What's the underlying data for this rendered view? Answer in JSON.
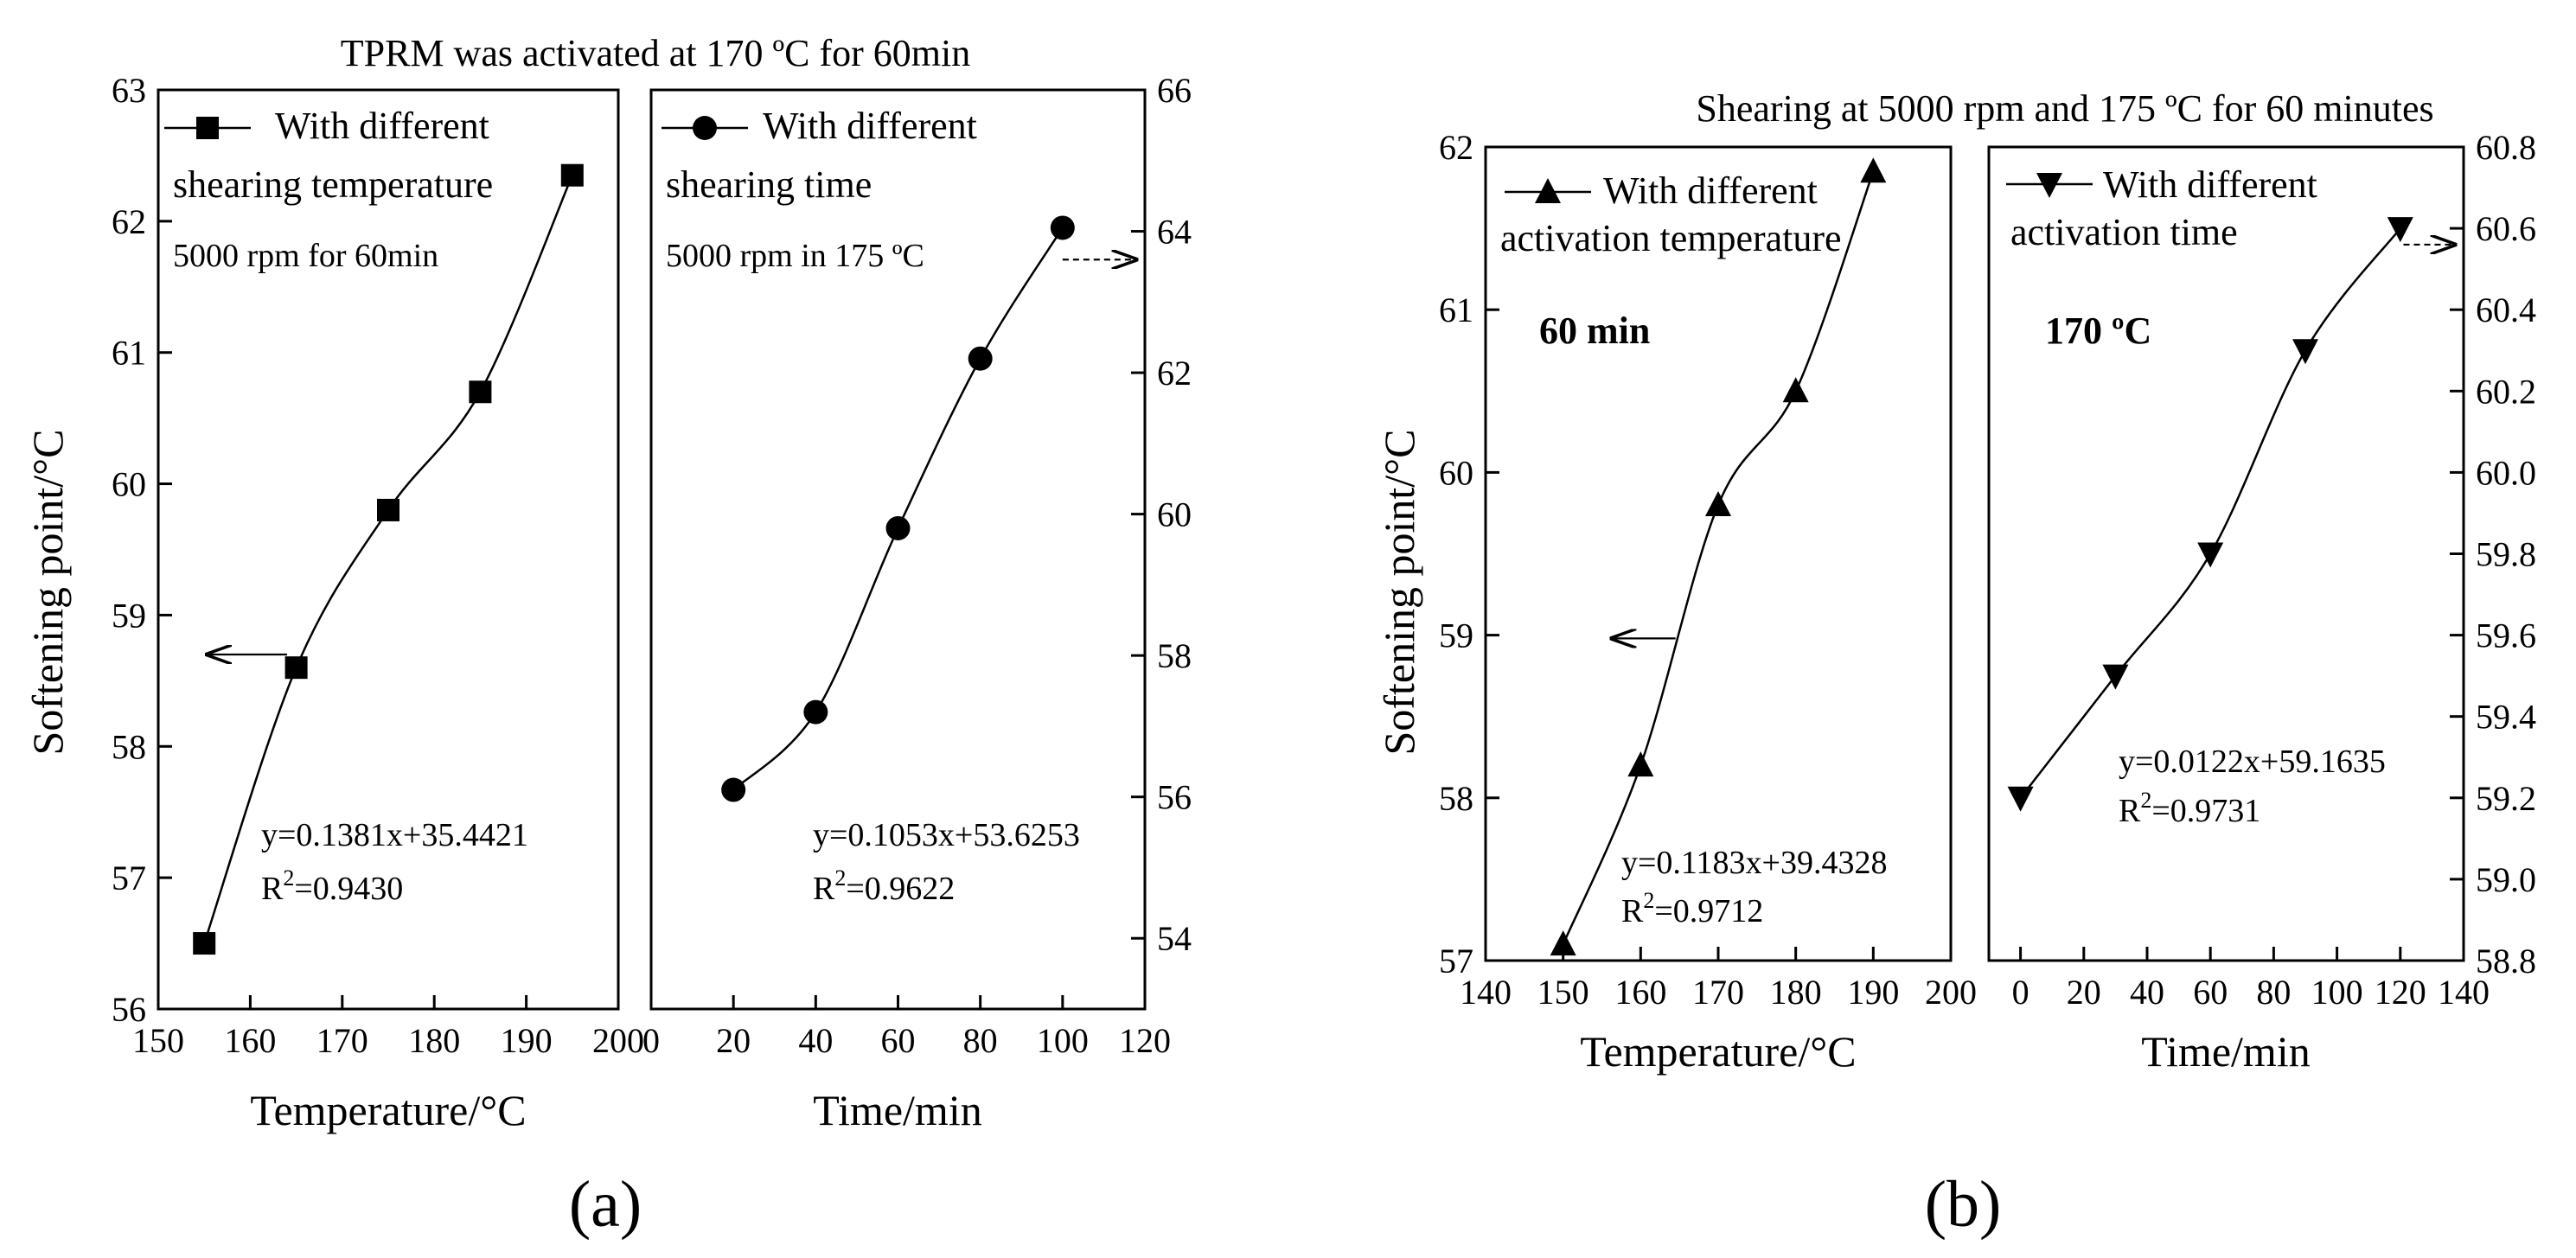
{
  "chart_data": [
    {
      "type": "line",
      "panel": "a",
      "title": "TPRM was activated at 170 ºC for 60min",
      "ylabel": "Softening point/°C",
      "subplots": [
        {
          "id": "a1",
          "xlabel": "Temperature/°C",
          "xlim": [
            150,
            200
          ],
          "xticks": [
            150,
            160,
            170,
            180,
            190,
            200
          ],
          "ylim": [
            56,
            63
          ],
          "yticks": [
            56,
            57,
            58,
            59,
            60,
            61,
            62,
            63
          ],
          "yaxis_side": "left",
          "legend": "With different shearing temperature",
          "legend_lines": [
            "With different",
            "shearing temperature"
          ],
          "marker": "square",
          "condition": "5000 rpm for 60min",
          "condition_color": "#ff00ff",
          "equation": "y=0.1381x+35.4421",
          "r2": "=0.9430",
          "x": [
            155,
            165,
            175,
            185,
            195
          ],
          "y": [
            56.5,
            58.6,
            59.8,
            60.7,
            62.35
          ]
        },
        {
          "id": "a2",
          "xlabel": "Time/min",
          "xlim": [
            0,
            120
          ],
          "xticks": [
            0,
            20,
            40,
            60,
            80,
            100,
            120
          ],
          "ylim": [
            53,
            66
          ],
          "yticks": [
            54,
            56,
            58,
            60,
            62,
            64,
            66
          ],
          "yaxis_side": "right",
          "legend": "With different shearing time",
          "legend_lines": [
            "With different",
            "shearing time"
          ],
          "marker": "circle",
          "condition": "5000 rpm in 175 ºC",
          "condition_color": "#ff8c00",
          "equation": "y=0.1053x+53.6253",
          "r2": "=0.9622",
          "x": [
            20,
            40,
            60,
            80,
            100
          ],
          "y": [
            56.1,
            57.2,
            59.8,
            62.2,
            64.05
          ]
        }
      ]
    },
    {
      "type": "line",
      "panel": "b",
      "title": "Shearing at 5000 rpm and 175 ºC for 60 minutes",
      "ylabel": "Softening point/°C",
      "subplots": [
        {
          "id": "b1",
          "xlabel": "Temperature/°C",
          "xlim": [
            140,
            200
          ],
          "xticks": [
            140,
            150,
            160,
            170,
            180,
            190,
            200
          ],
          "ylim": [
            57,
            62
          ],
          "yticks": [
            57,
            58,
            59,
            60,
            61,
            62
          ],
          "yaxis_side": "left",
          "legend": "With different activation temperature",
          "legend_lines": [
            "With different",
            "activation temperature"
          ],
          "marker": "triangle-up",
          "condition": "60 min",
          "condition_color": "#ff00ff",
          "equation": "y=0.1183x+39.4328",
          "r2": "=0.9712",
          "x": [
            150,
            160,
            170,
            180,
            190
          ],
          "y": [
            57.1,
            58.2,
            59.8,
            60.5,
            61.85
          ]
        },
        {
          "id": "b2",
          "xlabel": "Time/min",
          "xlim": [
            -10,
            140
          ],
          "xticks": [
            0,
            20,
            40,
            60,
            80,
            100,
            120,
            140
          ],
          "ylim": [
            58.8,
            60.8
          ],
          "yticks": [
            58.8,
            59.0,
            59.2,
            59.4,
            59.6,
            59.8,
            60.0,
            60.2,
            60.4,
            60.6,
            60.8
          ],
          "yaxis_side": "right",
          "legend": "With different activation time",
          "legend_lines": [
            "With different",
            "activation time"
          ],
          "marker": "triangle-down",
          "condition": "170 ºC",
          "condition_color": "#ff8c00",
          "equation": "y=0.0122x+59.1635",
          "r2": "=0.9731",
          "x": [
            0,
            30,
            60,
            90,
            120
          ],
          "y": [
            59.2,
            59.5,
            59.8,
            60.3,
            60.6
          ]
        }
      ]
    }
  ],
  "labels": {
    "panel_a": "(a)",
    "panel_b": "(b)"
  }
}
